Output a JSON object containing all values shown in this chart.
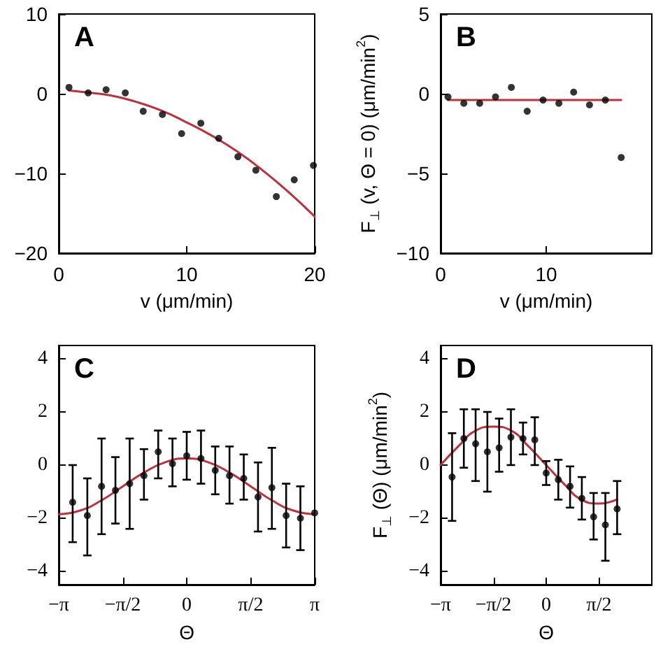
{
  "chart_data": [
    {
      "type": "scatter",
      "title": "A",
      "xlabel": "v (μm/min)",
      "xlim": [
        0,
        20
      ],
      "xticks": [
        0,
        10,
        20
      ],
      "ylim": [
        -20,
        10
      ],
      "yticks": [
        -20,
        -10,
        0,
        10
      ],
      "grid": false,
      "series": [
        {
          "color": "#000000",
          "marker": "circle",
          "x": [
            0.8,
            2.3,
            3.7,
            5.2,
            6.6,
            8.1,
            9.6,
            11.1,
            12.5,
            14.0,
            15.4,
            17.0,
            18.4,
            19.9
          ],
          "values": [
            0.8,
            0.1,
            0.5,
            0.1,
            -2.2,
            -2.6,
            -5,
            -3.7,
            -5.6,
            -7.9,
            -9.6,
            -12.9,
            -10.8,
            -9.0
          ]
        },
        {
          "type": "line",
          "color": "#c0303a",
          "marker": "none",
          "line_style": "solid",
          "x": [
            0.8,
            2,
            4,
            6,
            8,
            10,
            12,
            14,
            16,
            18,
            20
          ],
          "values": [
            0.4,
            0.2,
            -0.2,
            -1,
            -2.1,
            -3.6,
            -5.3,
            -7.3,
            -9.7,
            -12.4,
            -15.4
          ]
        }
      ]
    },
    {
      "type": "scatter",
      "title": "B",
      "xlabel": "v (μm/min)",
      "ylabel": "F$_{⊥}$ (v, Θ = 0) (μm/min$^{2}$)",
      "xlim": [
        0,
        20
      ],
      "xticks": [
        0,
        10
      ],
      "ylim": [
        -10,
        5
      ],
      "yticks": [
        -10,
        -5,
        0,
        5
      ],
      "grid": false,
      "series": [
        {
          "color": "#000000",
          "marker": "circle",
          "x": [
            0.7,
            2.2,
            3.7,
            5.2,
            6.7,
            8.2,
            9.7,
            11.2,
            12.6,
            14.1,
            15.6,
            17.1
          ],
          "values": [
            -0.2,
            -0.6,
            -0.6,
            -0.2,
            0.4,
            -1.1,
            -0.4,
            -0.6,
            0.1,
            -0.7,
            -0.4,
            -4.0
          ]
        },
        {
          "type": "line",
          "color": "#c0303a",
          "marker": "none",
          "line_style": "solid",
          "x": [
            0.7,
            17.1
          ],
          "values": [
            -0.4,
            -0.4
          ]
        }
      ]
    },
    {
      "type": "scatter",
      "title": "C",
      "xlabel": "Θ",
      "xlim": [
        -3.1416,
        3.1416
      ],
      "xticks": [
        {
          "value": -3.1416,
          "label": "−π"
        },
        {
          "value": -1.5708,
          "label": "−π/2"
        },
        0,
        {
          "value": 1.5708,
          "label": "π/2"
        },
        {
          "value": 3.1416,
          "label": "π"
        }
      ],
      "ylim": [
        -4.5,
        4.5
      ],
      "yticks": [
        -4,
        -2,
        0,
        2,
        4
      ],
      "grid": false,
      "series": [
        {
          "color": "#000000",
          "marker": "circle",
          "x": [
            -2.8,
            -2.44,
            -2.09,
            -1.75,
            -1.4,
            -1.05,
            -0.7,
            -0.35,
            0,
            0.35,
            0.7,
            1.05,
            1.4,
            1.75,
            2.09,
            2.44,
            2.79,
            3.14
          ],
          "values": [
            -1.4,
            -1.9,
            -0.8,
            -0.95,
            -0.7,
            -0.4,
            0.5,
            0.05,
            0.35,
            0.25,
            -0.2,
            -0.4,
            -0.5,
            -1.2,
            -0.85,
            -1.9,
            -2.0,
            -1.8
          ],
          "errors": [
            [
              -2.9,
              0
            ],
            [
              -3.4,
              -0.5
            ],
            [
              -2.6,
              1.0
            ],
            [
              -2.2,
              0.3
            ],
            [
              -2.4,
              1.0
            ],
            [
              -1.3,
              0.6
            ],
            [
              -0.5,
              1.3
            ],
            [
              -0.8,
              1.0
            ],
            [
              -0.55,
              1.25
            ],
            [
              -0.7,
              1.3
            ],
            [
              -1.1,
              0.7
            ],
            [
              -1.45,
              0.7
            ],
            [
              -1.3,
              0.4
            ],
            [
              -2.5,
              0.1
            ],
            [
              -2.4,
              0.65
            ],
            [
              -3.1,
              -0.7
            ],
            [
              -3.2,
              -0.8
            ],
            null
          ]
        },
        {
          "type": "line",
          "color": "#c0303a",
          "marker": "none",
          "line_style": "solid",
          "x": [
            -3.1416,
            -2.618,
            -2.0944,
            -1.5708,
            -1.0472,
            -0.5236,
            0,
            0.5236,
            1.0472,
            1.5708,
            2.0944,
            2.618,
            3.1416
          ],
          "values": [
            -1.85,
            -1.71,
            -1.33,
            -0.8,
            -0.28,
            0.11,
            0.25,
            0.11,
            -0.28,
            -0.8,
            -1.33,
            -1.71,
            -1.85
          ]
        }
      ]
    },
    {
      "type": "scatter",
      "title": "D",
      "xlabel": "Θ",
      "ylabel": "F$_{⊥}$ (Θ) (μm/min$^{2}$)",
      "xlim": [
        -3.1416,
        3.1416
      ],
      "xticks": [
        {
          "value": -3.1416,
          "label": "−π"
        },
        {
          "value": -1.5708,
          "label": "−π/2"
        },
        0,
        {
          "value": 1.5708,
          "label": "π/2"
        }
      ],
      "ylim": [
        -4.5,
        4.5
      ],
      "yticks": [
        -4,
        -2,
        0,
        2,
        4
      ],
      "grid": false,
      "series": [
        {
          "color": "#000000",
          "marker": "circle",
          "x": [
            -2.8,
            -2.45,
            -2.1,
            -1.75,
            -1.4,
            -1.05,
            -0.69,
            -0.34,
            0,
            0.36,
            0.71,
            1.06,
            1.41,
            1.76,
            2.11
          ],
          "values": [
            -0.45,
            1.0,
            0.8,
            0.5,
            0.65,
            1.05,
            1.0,
            0.95,
            -0.3,
            -0.55,
            -0.8,
            -1.25,
            -1.95,
            -2.25,
            -1.65
          ],
          "errors": [
            [
              -2.1,
              1.2
            ],
            [
              -0.1,
              2.1
            ],
            [
              -0.6,
              2.1
            ],
            [
              -1.0,
              2.0
            ],
            [
              -0.25,
              1.75
            ],
            [
              0,
              2.1
            ],
            [
              0.4,
              1.6
            ],
            [
              0,
              1.8
            ],
            [
              -0.75,
              0.15
            ],
            [
              -1.3,
              0.2
            ],
            [
              -1.6,
              -0.05
            ],
            [
              -2.05,
              -0.45
            ],
            [
              -2.8,
              -1.05
            ],
            [
              -3.6,
              -1.05
            ],
            [
              -2.6,
              -0.6
            ]
          ]
        },
        {
          "type": "line",
          "color": "#c0303a",
          "marker": "none",
          "line_style": "solid",
          "x": [
            -3.1416,
            -2.618,
            -2.0944,
            -1.5708,
            -1.0472,
            -0.5236,
            0,
            0.5236,
            1.0472,
            1.5708,
            2.0944
          ],
          "values": [
            0,
            0.7,
            1.3,
            1.45,
            1.3,
            0.7,
            0,
            -0.7,
            -1.3,
            -1.45,
            -1.3
          ]
        }
      ]
    }
  ]
}
